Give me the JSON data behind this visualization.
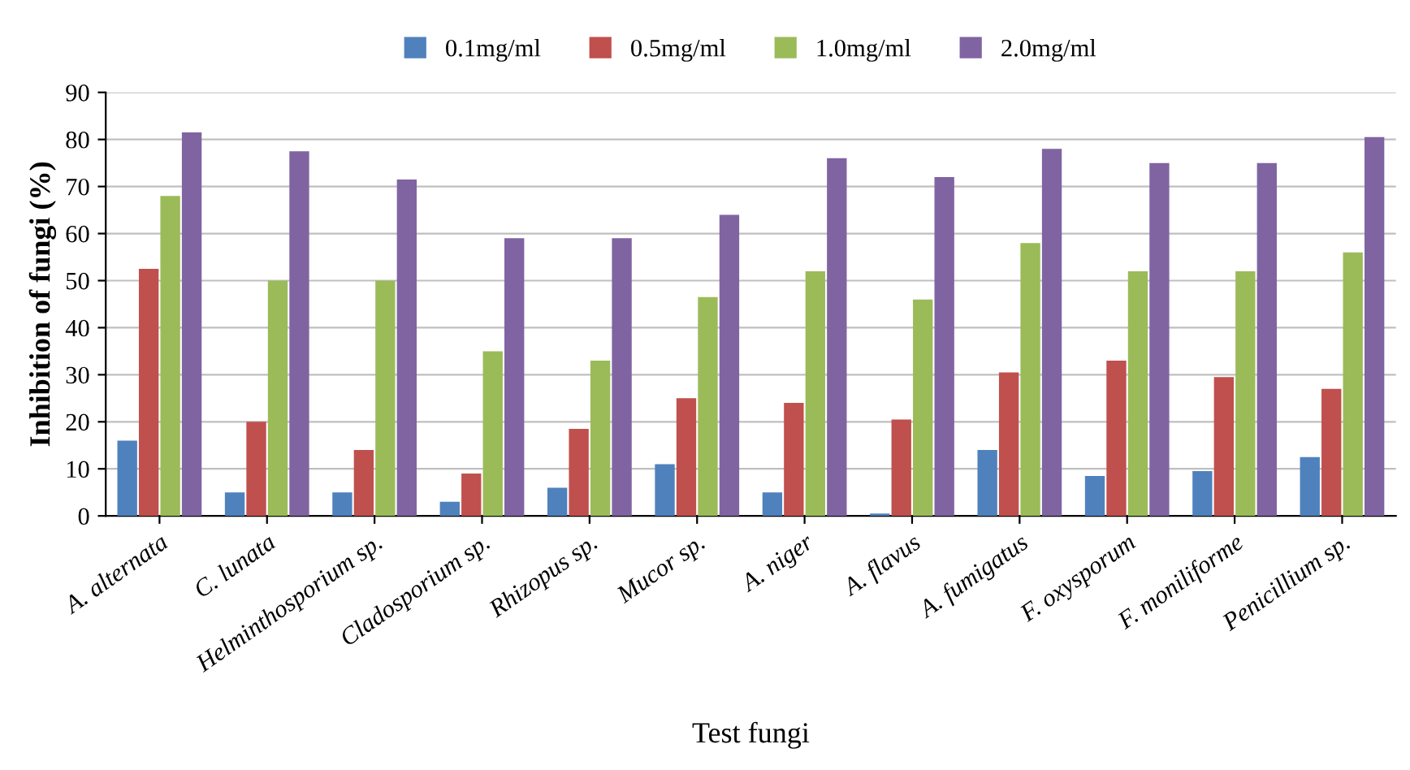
{
  "chart_data": {
    "type": "bar",
    "xlabel": "Test fungi",
    "ylabel": "Inhibition of fungi (%)",
    "categories": [
      "A. alternata",
      "C. lunata",
      "Helminthosporium sp.",
      "Cladosporium sp.",
      "Rhizopus sp.",
      "Mucor sp.",
      "A. niger",
      "A. flavus",
      "A. fumigatus",
      "F. oxysporum",
      "F. moniliforme",
      "Penicillium sp."
    ],
    "series": [
      {
        "name": "0.1mg/ml",
        "color": "#4f81bd",
        "values": [
          16,
          5,
          5,
          3,
          6,
          11,
          5,
          0.5,
          14,
          8.5,
          9.5,
          12.5
        ]
      },
      {
        "name": "0.5mg/ml",
        "color": "#c0504d",
        "values": [
          52.5,
          20,
          14,
          9,
          18.5,
          25,
          24,
          20.5,
          30.5,
          33,
          29.5,
          27
        ]
      },
      {
        "name": "1.0mg/ml",
        "color": "#9bbb59",
        "values": [
          68,
          50,
          50,
          35,
          33,
          46.5,
          52,
          46,
          58,
          52,
          52,
          56
        ]
      },
      {
        "name": "2.0mg/ml",
        "color": "#8064a2",
        "values": [
          81.5,
          77.5,
          71.5,
          59,
          59,
          64,
          76,
          72,
          78,
          75,
          75,
          80.5
        ]
      }
    ],
    "ylim": [
      0,
      90
    ],
    "yticks": [
      0,
      10,
      20,
      30,
      40,
      50,
      60,
      70,
      80,
      90
    ],
    "grid": "y",
    "legend": "top"
  }
}
